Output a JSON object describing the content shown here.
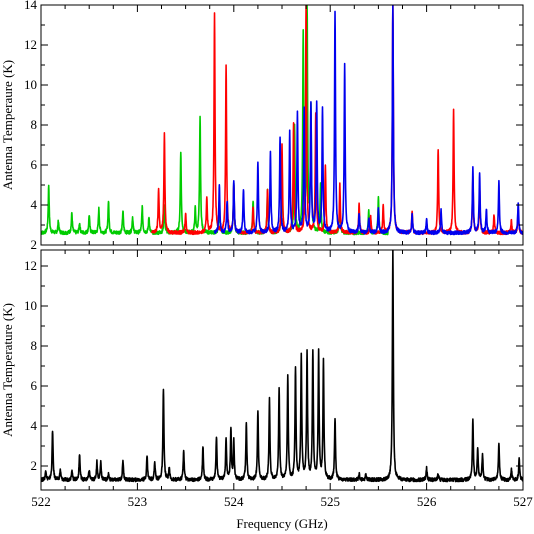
{
  "chart_data": [
    {
      "type": "line",
      "panel": "top",
      "xlim": [
        522,
        527
      ],
      "ylim": [
        2,
        14
      ],
      "ylabel": "Antenna Temperaure (K)",
      "yticks": [
        2,
        4,
        6,
        8,
        10,
        12,
        14
      ],
      "xticks_minor_step": 0.25,
      "grid": false,
      "baseline": 2.6,
      "series": [
        {
          "color": "#00cc00",
          "range": [
            522,
            525.6
          ],
          "peaks": [
            [
              522.08,
              5.0
            ],
            [
              522.18,
              3.2
            ],
            [
              522.32,
              3.6
            ],
            [
              522.4,
              3.1
            ],
            [
              522.5,
              3.5
            ],
            [
              522.6,
              3.8
            ],
            [
              522.7,
              4.2
            ],
            [
              522.85,
              3.7
            ],
            [
              522.95,
              3.4
            ],
            [
              523.05,
              3.9
            ],
            [
              523.12,
              3.4
            ],
            [
              523.28,
              4.0
            ],
            [
              523.45,
              6.7
            ],
            [
              523.6,
              3.8
            ],
            [
              523.65,
              8.4
            ],
            [
              523.85,
              4.2
            ],
            [
              524.0,
              5.0
            ],
            [
              524.2,
              4.2
            ],
            [
              524.35,
              4.8
            ],
            [
              524.5,
              6.0
            ],
            [
              524.63,
              8.0
            ],
            [
              524.72,
              12.5
            ],
            [
              524.76,
              14.2
            ],
            [
              524.8,
              8.8
            ],
            [
              524.9,
              5.0
            ],
            [
              525.1,
              4.2
            ],
            [
              525.4,
              3.7
            ],
            [
              525.5,
              4.4
            ]
          ]
        },
        {
          "color": "#ff0000",
          "range": [
            523.15,
            527
          ],
          "peaks": [
            [
              523.22,
              4.8
            ],
            [
              523.28,
              7.5
            ],
            [
              523.5,
              3.6
            ],
            [
              523.72,
              4.4
            ],
            [
              523.8,
              13.6
            ],
            [
              523.92,
              11.0
            ],
            [
              524.0,
              5.0
            ],
            [
              524.2,
              3.9
            ],
            [
              524.35,
              4.8
            ],
            [
              524.5,
              7.0
            ],
            [
              524.62,
              8.0
            ],
            [
              524.75,
              14.2
            ],
            [
              524.85,
              8.6
            ],
            [
              524.95,
              6.0
            ],
            [
              525.1,
              5.0
            ],
            [
              525.3,
              4.0
            ],
            [
              525.42,
              3.4
            ],
            [
              525.55,
              4.0
            ],
            [
              525.65,
              14.2
            ],
            [
              525.85,
              3.6
            ],
            [
              526.12,
              6.8
            ],
            [
              526.28,
              8.7
            ],
            [
              526.48,
              5.4
            ],
            [
              526.55,
              4.8
            ],
            [
              526.7,
              3.5
            ],
            [
              526.88,
              3.2
            ],
            [
              526.95,
              3.8
            ]
          ]
        },
        {
          "color": "#0000ee",
          "range": [
            523.8,
            527
          ],
          "peaks": [
            [
              523.85,
              5.0
            ],
            [
              523.93,
              4.2
            ],
            [
              524.0,
              5.2
            ],
            [
              524.1,
              4.8
            ],
            [
              524.25,
              6.2
            ],
            [
              524.38,
              6.6
            ],
            [
              524.48,
              7.4
            ],
            [
              524.58,
              7.6
            ],
            [
              524.66,
              8.6
            ],
            [
              524.73,
              8.8
            ],
            [
              524.8,
              9.0
            ],
            [
              524.86,
              9.1
            ],
            [
              524.92,
              8.8
            ],
            [
              525.05,
              13.7
            ],
            [
              525.15,
              11.0
            ],
            [
              525.3,
              3.6
            ],
            [
              525.4,
              3.3
            ],
            [
              525.5,
              3.8
            ],
            [
              525.65,
              14.2
            ],
            [
              525.85,
              3.5
            ],
            [
              526.0,
              3.3
            ],
            [
              526.15,
              3.8
            ],
            [
              526.48,
              5.8
            ],
            [
              526.55,
              5.6
            ],
            [
              526.62,
              3.8
            ],
            [
              526.75,
              5.2
            ],
            [
              526.95,
              4.1
            ]
          ]
        }
      ]
    },
    {
      "type": "line",
      "panel": "bottom",
      "xlim": [
        522,
        527
      ],
      "ylim": [
        0.8,
        12.8
      ],
      "xlabel": "Frequency (GHz)",
      "ylabel": "Antenna Temperature (K)",
      "xticks": [
        522,
        523,
        524,
        525,
        526,
        527
      ],
      "yticks": [
        2,
        4,
        6,
        8,
        10,
        12
      ],
      "xticks_minor_step": 0.25,
      "grid": false,
      "baseline": 1.3,
      "series": [
        {
          "color": "#000000",
          "range": [
            522,
            527
          ],
          "peaks": [
            [
              522.05,
              1.8
            ],
            [
              522.12,
              3.8
            ],
            [
              522.2,
              1.8
            ],
            [
              522.32,
              1.8
            ],
            [
              522.4,
              2.6
            ],
            [
              522.5,
              1.8
            ],
            [
              522.58,
              2.2
            ],
            [
              522.62,
              2.2
            ],
            [
              522.7,
              1.6
            ],
            [
              522.85,
              2.3
            ],
            [
              523.1,
              2.5
            ],
            [
              523.18,
              2.2
            ],
            [
              523.27,
              5.9
            ],
            [
              523.33,
              1.9
            ],
            [
              523.48,
              2.8
            ],
            [
              523.68,
              3.0
            ],
            [
              523.82,
              3.5
            ],
            [
              523.92,
              3.4
            ],
            [
              523.97,
              3.8
            ],
            [
              524.0,
              3.2
            ],
            [
              524.13,
              4.2
            ],
            [
              524.25,
              4.8
            ],
            [
              524.37,
              5.3
            ],
            [
              524.47,
              5.9
            ],
            [
              524.56,
              6.5
            ],
            [
              524.64,
              6.9
            ],
            [
              524.7,
              7.4
            ],
            [
              524.76,
              7.6
            ],
            [
              524.82,
              7.7
            ],
            [
              524.88,
              7.6
            ],
            [
              524.93,
              7.2
            ],
            [
              525.05,
              4.4
            ],
            [
              525.3,
              1.6
            ],
            [
              525.37,
              1.6
            ],
            [
              525.65,
              12.8
            ],
            [
              526.0,
              1.9
            ],
            [
              526.12,
              1.6
            ],
            [
              526.48,
              4.3
            ],
            [
              526.53,
              2.9
            ],
            [
              526.58,
              2.6
            ],
            [
              526.75,
              3.2
            ],
            [
              526.88,
              1.8
            ],
            [
              526.96,
              2.4
            ]
          ]
        }
      ]
    }
  ]
}
